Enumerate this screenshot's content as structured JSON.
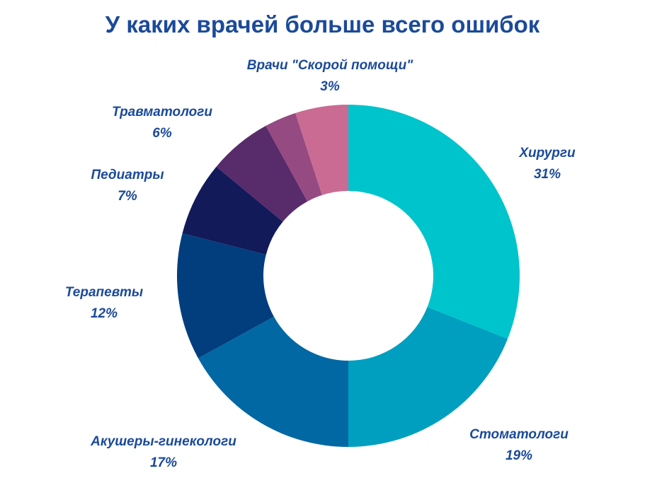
{
  "chart_data": {
    "type": "pie",
    "title": "У каких врачей больше всего ошибок",
    "donut": true,
    "start_angle_deg": 0,
    "direction": "clockwise",
    "slices": [
      {
        "label": "Хирурги",
        "value": 31,
        "value_label": "31%",
        "color": "#00c4cc"
      },
      {
        "label": "Стоматологи",
        "value": 19,
        "value_label": "19%",
        "color": "#009fbf"
      },
      {
        "label": "Акушеры-гинекологи",
        "value": 17,
        "value_label": "17%",
        "color": "#0168a3"
      },
      {
        "label": "Терапевты",
        "value": 12,
        "value_label": "12%",
        "color": "#023e7d"
      },
      {
        "label": "Педиатры",
        "value": 7,
        "value_label": "7%",
        "color": "#121a5a"
      },
      {
        "label": "Травматологи",
        "value": 6,
        "value_label": "6%",
        "color": "#582b6a"
      },
      {
        "label": "Врачи \"Скорой помощи\"",
        "value": 3,
        "value_label": "3%",
        "color": "#964a82"
      },
      {
        "label": "",
        "value": 5,
        "value_label": "",
        "color": "#c96b92"
      }
    ]
  }
}
